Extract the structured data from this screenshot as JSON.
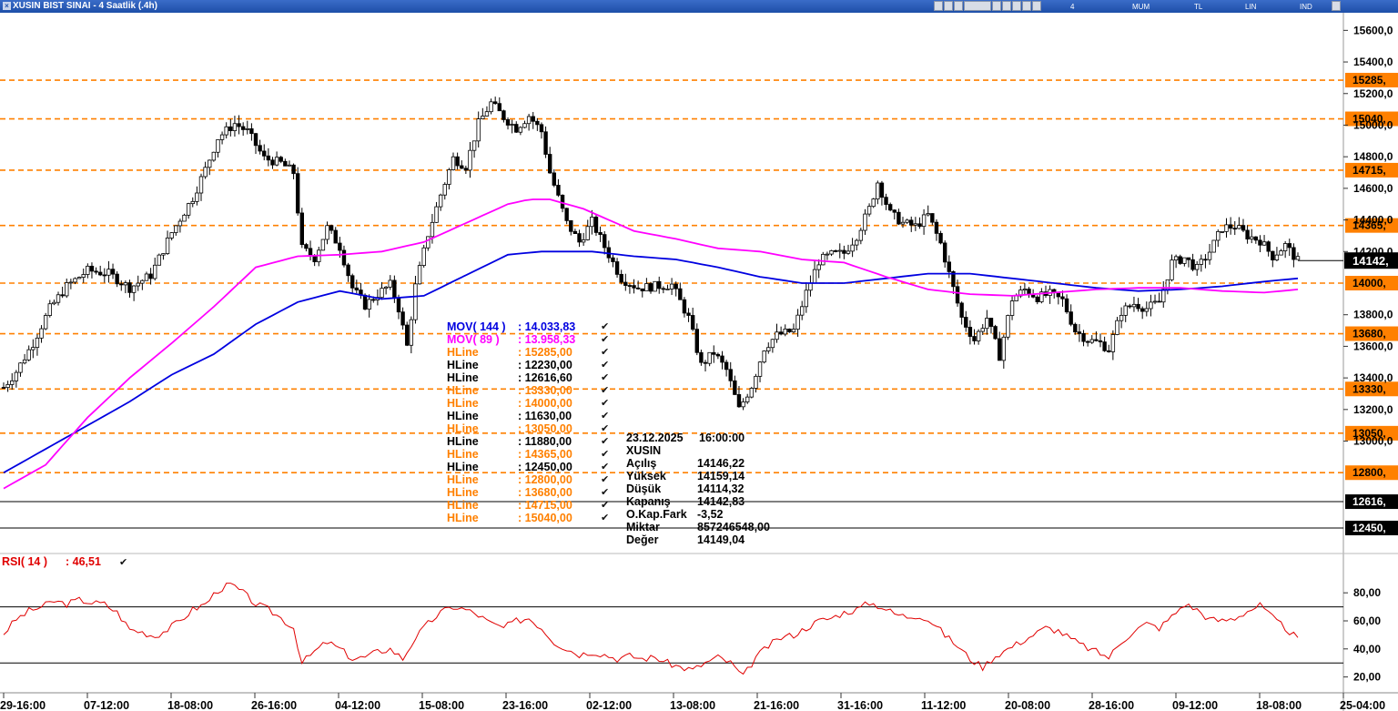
{
  "window": {
    "title": "XUSIN BIST SINAI - 4 Saatlik (.4h)"
  },
  "toolbar": {
    "period": "4 Saatlik",
    "type": "MUM",
    "currency": "TL",
    "scale": "LIN",
    "mode": "IND"
  },
  "chart_data": [
    {
      "type": "candlestick",
      "title": "XUSIN BIST SINAI - 4 Saatlik (.4h)",
      "ylim": [
        12300,
        15700
      ],
      "y_ticks": [
        "15600,0",
        "15400,0",
        "15200,0",
        "15000,0",
        "14800,0",
        "14600,0",
        "14400,0",
        "14200,0",
        "13800,0",
        "13600,0",
        "13400,0",
        "13200,0",
        "13000,0"
      ],
      "x_ticks": [
        "29-16:00",
        "07-12:00",
        "18-08:00",
        "26-16:00",
        "04-12:00",
        "15-08:00",
        "23-16:00",
        "02-12:00",
        "13-08:00",
        "21-16:00",
        "31-16:00",
        "11-12:00",
        "20-08:00",
        "28-16:00",
        "09-12:00",
        "18-08:00",
        "25-04:00"
      ],
      "close_path": [
        [
          0,
          13340
        ],
        [
          3,
          13440
        ],
        [
          7,
          13620
        ],
        [
          11,
          13840
        ],
        [
          15,
          13980
        ],
        [
          20,
          14080
        ],
        [
          25,
          14060
        ],
        [
          30,
          13970
        ],
        [
          35,
          14050
        ],
        [
          40,
          14320
        ],
        [
          45,
          14540
        ],
        [
          48,
          14720
        ],
        [
          51,
          14920
        ],
        [
          55,
          15010
        ],
        [
          58,
          14960
        ],
        [
          62,
          14790
        ],
        [
          66,
          14760
        ],
        [
          69,
          14700
        ],
        [
          71,
          14220
        ],
        [
          74,
          14160
        ],
        [
          77,
          14350
        ],
        [
          80,
          14230
        ],
        [
          83,
          13970
        ],
        [
          86,
          13860
        ],
        [
          89,
          13930
        ],
        [
          92,
          13990
        ],
        [
          94,
          13840
        ],
        [
          96,
          13600
        ],
        [
          98,
          13980
        ],
        [
          101,
          14310
        ],
        [
          104,
          14560
        ],
        [
          107,
          14790
        ],
        [
          110,
          14740
        ],
        [
          113,
          15010
        ],
        [
          116,
          15140
        ],
        [
          119,
          15050
        ],
        [
          122,
          14980
        ],
        [
          125,
          15060
        ],
        [
          128,
          14960
        ],
        [
          130,
          14700
        ],
        [
          134,
          14380
        ],
        [
          137,
          14260
        ],
        [
          140,
          14390
        ],
        [
          143,
          14230
        ],
        [
          147,
          14030
        ],
        [
          151,
          13970
        ],
        [
          155,
          13980
        ],
        [
          159,
          13990
        ],
        [
          163,
          13780
        ],
        [
          166,
          13480
        ],
        [
          169,
          13560
        ],
        [
          172,
          13450
        ],
        [
          175,
          13200
        ],
        [
          178,
          13350
        ],
        [
          181,
          13590
        ],
        [
          184,
          13670
        ],
        [
          188,
          13700
        ],
        [
          191,
          13940
        ],
        [
          194,
          14140
        ],
        [
          197,
          14180
        ],
        [
          200,
          14190
        ],
        [
          203,
          14300
        ],
        [
          206,
          14470
        ],
        [
          208,
          14640
        ],
        [
          211,
          14440
        ],
        [
          214,
          14380
        ],
        [
          217,
          14360
        ],
        [
          220,
          14430
        ],
        [
          223,
          14250
        ],
        [
          225,
          14060
        ],
        [
          228,
          13780
        ],
        [
          231,
          13640
        ],
        [
          234,
          13780
        ],
        [
          237,
          13540
        ],
        [
          240,
          13900
        ],
        [
          243,
          13960
        ],
        [
          246,
          13910
        ],
        [
          249,
          13930
        ],
        [
          252,
          13890
        ],
        [
          255,
          13700
        ],
        [
          258,
          13640
        ],
        [
          261,
          13620
        ],
        [
          263,
          13580
        ],
        [
          266,
          13820
        ],
        [
          269,
          13870
        ],
        [
          272,
          13840
        ],
        [
          275,
          13880
        ],
        [
          278,
          14130
        ],
        [
          281,
          14160
        ],
        [
          284,
          14090
        ],
        [
          287,
          14200
        ],
        [
          290,
          14350
        ],
        [
          293,
          14360
        ],
        [
          296,
          14300
        ],
        [
          299,
          14270
        ],
        [
          302,
          14170
        ],
        [
          305,
          14240
        ],
        [
          308,
          14140
        ]
      ],
      "moving_averages": [
        {
          "name": "MOV( 144 )",
          "color": "#0000e0",
          "value": "14.033,83",
          "path": [
            [
              0,
              12800
            ],
            [
              10,
              12950
            ],
            [
              20,
              13100
            ],
            [
              30,
              13250
            ],
            [
              40,
              13420
            ],
            [
              50,
              13550
            ],
            [
              60,
              13740
            ],
            [
              70,
              13880
            ],
            [
              80,
              13950
            ],
            [
              90,
              13900
            ],
            [
              100,
              13920
            ],
            [
              110,
              14050
            ],
            [
              120,
              14180
            ],
            [
              128,
              14200
            ],
            [
              140,
              14200
            ],
            [
              150,
              14170
            ],
            [
              160,
              14150
            ],
            [
              170,
              14100
            ],
            [
              180,
              14040
            ],
            [
              190,
              14000
            ],
            [
              200,
              14000
            ],
            [
              210,
              14030
            ],
            [
              220,
              14060
            ],
            [
              230,
              14060
            ],
            [
              240,
              14030
            ],
            [
              250,
              14000
            ],
            [
              260,
              13970
            ],
            [
              270,
              13950
            ],
            [
              280,
              13960
            ],
            [
              290,
              13980
            ],
            [
              300,
              14010
            ],
            [
              308,
              14030
            ]
          ]
        },
        {
          "name": "MOV( 89 )",
          "color": "#ff00ff",
          "value": "13.958,33",
          "path": [
            [
              0,
              12700
            ],
            [
              10,
              12850
            ],
            [
              20,
              13150
            ],
            [
              30,
              13400
            ],
            [
              40,
              13620
            ],
            [
              50,
              13850
            ],
            [
              60,
              14100
            ],
            [
              70,
              14170
            ],
            [
              80,
              14180
            ],
            [
              90,
              14200
            ],
            [
              100,
              14260
            ],
            [
              110,
              14380
            ],
            [
              120,
              14500
            ],
            [
              125,
              14530
            ],
            [
              130,
              14530
            ],
            [
              138,
              14470
            ],
            [
              150,
              14330
            ],
            [
              160,
              14280
            ],
            [
              170,
              14220
            ],
            [
              180,
              14200
            ],
            [
              190,
              14150
            ],
            [
              200,
              14130
            ],
            [
              210,
              14040
            ],
            [
              220,
              13960
            ],
            [
              230,
              13930
            ],
            [
              240,
              13920
            ],
            [
              250,
              13940
            ],
            [
              260,
              13960
            ],
            [
              270,
              13970
            ],
            [
              280,
              13970
            ],
            [
              290,
              13950
            ],
            [
              300,
              13940
            ],
            [
              308,
              13960
            ]
          ]
        }
      ],
      "hlines": [
        {
          "name": "HLine",
          "value": "15285,00",
          "color": "#ff8000",
          "style": "dashed",
          "right_label": "15285,"
        },
        {
          "name": "HLine",
          "value": "12230,00",
          "color": "#000000",
          "style": "solid",
          "right_label": ""
        },
        {
          "name": "HLine",
          "value": "12616,60",
          "color": "#000000",
          "style": "solid",
          "right_label": "12616,"
        },
        {
          "name": "HLine",
          "value": "13330,00",
          "color": "#ff8000",
          "style": "dashed",
          "right_label": "13330,"
        },
        {
          "name": "HLine",
          "value": "14000,00",
          "color": "#ff8000",
          "style": "dashed",
          "right_label": "14000,"
        },
        {
          "name": "HLine",
          "value": "11630,00",
          "color": "#000000",
          "style": "solid",
          "right_label": ""
        },
        {
          "name": "HLine",
          "value": "13050,00",
          "color": "#ff8000",
          "style": "dashed",
          "right_label": "13050,"
        },
        {
          "name": "HLine",
          "value": "11880,00",
          "color": "#000000",
          "style": "solid",
          "right_label": ""
        },
        {
          "name": "HLine",
          "value": "14365,00",
          "color": "#ff8000",
          "style": "dashed",
          "right_label": "14365,"
        },
        {
          "name": "HLine",
          "value": "12450,00",
          "color": "#000000",
          "style": "solid",
          "right_label": "12450,"
        },
        {
          "name": "HLine",
          "value": "12800,00",
          "color": "#ff8000",
          "style": "dashed",
          "right_label": "12800,"
        },
        {
          "name": "HLine",
          "value": "13680,00",
          "color": "#ff8000",
          "style": "dashed",
          "right_label": "13680,"
        },
        {
          "name": "HLine",
          "value": "14715,00",
          "color": "#ff8000",
          "style": "dashed",
          "right_label": "14715,"
        },
        {
          "name": "HLine",
          "value": "15040,00",
          "color": "#ff8000",
          "style": "dashed",
          "right_label": "15040,"
        }
      ],
      "last_price_label": "14142,",
      "info_box": {
        "date": "23.12.2025",
        "time": "16:00:00",
        "symbol": "XUSIN",
        "rows": [
          {
            "label": "Açılış",
            "value": "14146,22"
          },
          {
            "label": "Yüksek",
            "value": "14159,14"
          },
          {
            "label": "Düşük",
            "value": "14114,32"
          },
          {
            "label": "Kapanış",
            "value": "14142,83"
          },
          {
            "label": "O.Kap.Fark",
            "value": "-3,52"
          },
          {
            "label": "Miktar",
            "value": "857246548,00"
          },
          {
            "label": "Değer",
            "value": "14149,04"
          }
        ]
      }
    },
    {
      "type": "line",
      "title": "RSI( 14 )",
      "value": "46,51",
      "color": "#e00000",
      "ylim": [
        10,
        97
      ],
      "y_ticks": [
        "80,00",
        "60,00",
        "40,00",
        "20,00"
      ],
      "reference_lines": [
        70,
        30
      ],
      "path": [
        [
          0,
          51
        ],
        [
          3,
          61
        ],
        [
          6,
          67
        ],
        [
          9,
          70
        ],
        [
          12,
          74
        ],
        [
          15,
          72
        ],
        [
          18,
          75
        ],
        [
          21,
          73
        ],
        [
          24,
          72
        ],
        [
          27,
          66
        ],
        [
          30,
          54
        ],
        [
          33,
          52
        ],
        [
          36,
          49
        ],
        [
          39,
          54
        ],
        [
          42,
          60
        ],
        [
          45,
          68
        ],
        [
          48,
          72
        ],
        [
          51,
          82
        ],
        [
          54,
          86
        ],
        [
          57,
          80
        ],
        [
          60,
          72
        ],
        [
          63,
          68
        ],
        [
          66,
          62
        ],
        [
          69,
          55
        ],
        [
          71,
          30
        ],
        [
          74,
          38
        ],
        [
          77,
          45
        ],
        [
          80,
          40
        ],
        [
          83,
          33
        ],
        [
          86,
          34
        ],
        [
          89,
          38
        ],
        [
          92,
          40
        ],
        [
          95,
          33
        ],
        [
          98,
          48
        ],
        [
          101,
          58
        ],
        [
          104,
          66
        ],
        [
          107,
          70
        ],
        [
          110,
          68
        ],
        [
          113,
          64
        ],
        [
          116,
          58
        ],
        [
          119,
          55
        ],
        [
          122,
          60
        ],
        [
          125,
          62
        ],
        [
          128,
          55
        ],
        [
          131,
          45
        ],
        [
          134,
          40
        ],
        [
          137,
          36
        ],
        [
          140,
          38
        ],
        [
          143,
          36
        ],
        [
          146,
          33
        ],
        [
          149,
          35
        ],
        [
          152,
          33
        ],
        [
          155,
          34
        ],
        [
          158,
          30
        ],
        [
          161,
          27
        ],
        [
          164,
          25
        ],
        [
          167,
          30
        ],
        [
          170,
          34
        ],
        [
          173,
          30
        ],
        [
          176,
          20
        ],
        [
          179,
          34
        ],
        [
          182,
          42
        ],
        [
          185,
          48
        ],
        [
          188,
          50
        ],
        [
          191,
          55
        ],
        [
          194,
          60
        ],
        [
          197,
          62
        ],
        [
          200,
          66
        ],
        [
          203,
          68
        ],
        [
          206,
          73
        ],
        [
          209,
          70
        ],
        [
          212,
          65
        ],
        [
          215,
          63
        ],
        [
          218,
          64
        ],
        [
          221,
          59
        ],
        [
          224,
          50
        ],
        [
          227,
          42
        ],
        [
          230,
          33
        ],
        [
          233,
          27
        ],
        [
          236,
          35
        ],
        [
          239,
          40
        ],
        [
          242,
          45
        ],
        [
          245,
          50
        ],
        [
          248,
          55
        ],
        [
          251,
          53
        ],
        [
          254,
          47
        ],
        [
          257,
          42
        ],
        [
          260,
          38
        ],
        [
          263,
          34
        ],
        [
          266,
          45
        ],
        [
          269,
          53
        ],
        [
          272,
          58
        ],
        [
          275,
          55
        ],
        [
          278,
          63
        ],
        [
          281,
          72
        ],
        [
          284,
          68
        ],
        [
          287,
          61
        ],
        [
          290,
          60
        ],
        [
          293,
          62
        ],
        [
          296,
          67
        ],
        [
          299,
          71
        ],
        [
          302,
          62
        ],
        [
          305,
          55
        ],
        [
          308,
          47
        ]
      ]
    }
  ]
}
